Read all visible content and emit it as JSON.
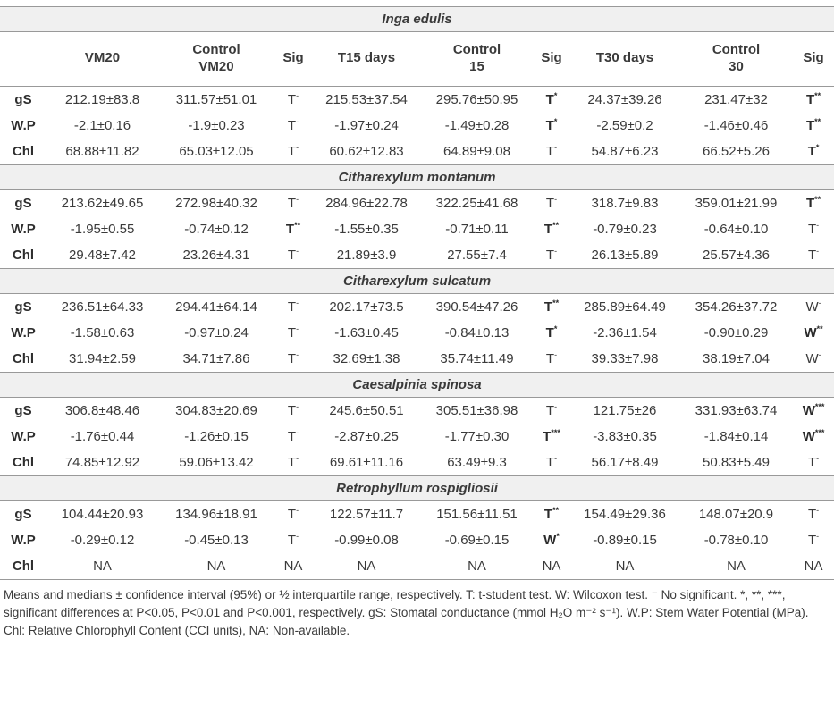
{
  "table": {
    "columns": [
      {
        "lines": []
      },
      {
        "lines": [
          "VM20"
        ]
      },
      {
        "lines": [
          "Control",
          "VM20"
        ]
      },
      {
        "lines": [
          "Sig"
        ]
      },
      {
        "lines": [
          "T15 days"
        ]
      },
      {
        "lines": [
          "Control",
          "15"
        ]
      },
      {
        "lines": [
          "Sig"
        ]
      },
      {
        "lines": [
          "T30 days"
        ]
      },
      {
        "lines": [
          "Control",
          "30"
        ]
      },
      {
        "lines": [
          "Sig"
        ]
      }
    ],
    "species": [
      {
        "name": "Inga edulis",
        "rows": [
          {
            "label": "gS",
            "values": [
              "212.19±83.8",
              "311.57±51.01",
              "215.53±37.54",
              "295.76±50.95",
              "24.37±39.26",
              "231.47±32"
            ],
            "sig": [
              {
                "t": "T",
                "s": "-"
              },
              {
                "t": "T",
                "s": "*",
                "b": true
              },
              {
                "t": "T",
                "s": "**",
                "b": true
              }
            ]
          },
          {
            "label": "W.P",
            "values": [
              "-2.1±0.16",
              "-1.9±0.23",
              "-1.97±0.24",
              "-1.49±0.28",
              "-2.59±0.2",
              "-1.46±0.46"
            ],
            "sig": [
              {
                "t": "T",
                "s": "-"
              },
              {
                "t": "T",
                "s": "*",
                "b": true
              },
              {
                "t": "T",
                "s": "**",
                "b": true
              }
            ]
          },
          {
            "label": "Chl",
            "values": [
              "68.88±11.82",
              "65.03±12.05",
              "60.62±12.83",
              "64.89±9.08",
              "54.87±6.23",
              "66.52±5.26"
            ],
            "sig": [
              {
                "t": "T",
                "s": "-"
              },
              {
                "t": "T",
                "s": "-"
              },
              {
                "t": "T",
                "s": "*",
                "b": true
              }
            ]
          }
        ]
      },
      {
        "name": "Citharexylum montanum",
        "rows": [
          {
            "label": "gS",
            "values": [
              "213.62±49.65",
              "272.98±40.32",
              "284.96±22.78",
              "322.25±41.68",
              "318.7±9.83",
              "359.01±21.99"
            ],
            "sig": [
              {
                "t": "T",
                "s": "-"
              },
              {
                "t": "T",
                "s": "-"
              },
              {
                "t": "T",
                "s": "**",
                "b": true
              }
            ]
          },
          {
            "label": "W.P",
            "values": [
              "-1.95±0.55",
              "-0.74±0.12",
              "-1.55±0.35",
              "-0.71±0.11",
              "-0.79±0.23",
              "-0.64±0.10"
            ],
            "sig": [
              {
                "t": "T",
                "s": "**",
                "b": true
              },
              {
                "t": "T",
                "s": "**",
                "b": true
              },
              {
                "t": "T",
                "s": "-"
              }
            ]
          },
          {
            "label": "Chl",
            "values": [
              "29.48±7.42",
              "23.26±4.31",
              "21.89±3.9",
              "27.55±7.4",
              "26.13±5.89",
              "25.57±4.36"
            ],
            "sig": [
              {
                "t": "T",
                "s": "-"
              },
              {
                "t": "T",
                "s": "-"
              },
              {
                "t": "T",
                "s": "-"
              }
            ]
          }
        ]
      },
      {
        "name": "Citharexylum sulcatum",
        "rows": [
          {
            "label": "gS",
            "values": [
              "236.51±64.33",
              "294.41±64.14",
              "202.17±73.5",
              "390.54±47.26",
              "285.89±64.49",
              "354.26±37.72"
            ],
            "sig": [
              {
                "t": "T",
                "s": "-"
              },
              {
                "t": "T",
                "s": "**",
                "b": true
              },
              {
                "t": "W",
                "s": "-"
              }
            ]
          },
          {
            "label": "W.P",
            "values": [
              "-1.58±0.63",
              "-0.97±0.24",
              "-1.63±0.45",
              "-0.84±0.13",
              "-2.36±1.54",
              "-0.90±0.29"
            ],
            "sig": [
              {
                "t": "T",
                "s": "-"
              },
              {
                "t": "T",
                "s": "*",
                "b": true
              },
              {
                "t": "W",
                "s": "**",
                "b": true
              }
            ]
          },
          {
            "label": "Chl",
            "values": [
              "31.94±2.59",
              "34.71±7.86",
              "32.69±1.38",
              "35.74±11.49",
              "39.33±7.98",
              "38.19±7.04"
            ],
            "sig": [
              {
                "t": "T",
                "s": "-"
              },
              {
                "t": "T",
                "s": "-"
              },
              {
                "t": "W",
                "s": "-"
              }
            ]
          }
        ]
      },
      {
        "name": "Caesalpinia spinosa",
        "rows": [
          {
            "label": "gS",
            "values": [
              "306.8±48.46",
              "304.83±20.69",
              "245.6±50.51",
              "305.51±36.98",
              "121.75±26",
              "331.93±63.74"
            ],
            "sig": [
              {
                "t": "T",
                "s": "-"
              },
              {
                "t": "T",
                "s": "-"
              },
              {
                "t": "W",
                "s": "***",
                "b": true
              }
            ]
          },
          {
            "label": "W.P",
            "values": [
              "-1.76±0.44",
              "-1.26±0.15",
              "-2.87±0.25",
              "-1.77±0.30",
              "-3.83±0.35",
              "-1.84±0.14"
            ],
            "sig": [
              {
                "t": "T",
                "s": "-"
              },
              {
                "t": "T",
                "s": "***",
                "b": true
              },
              {
                "t": "W",
                "s": "***",
                "b": true
              }
            ]
          },
          {
            "label": "Chl",
            "values": [
              "74.85±12.92",
              "59.06±13.42",
              "69.61±11.16",
              "63.49±9.3",
              "56.17±8.49",
              "50.83±5.49"
            ],
            "sig": [
              {
                "t": "T",
                "s": "-"
              },
              {
                "t": "T",
                "s": "-"
              },
              {
                "t": "T",
                "s": "-"
              }
            ]
          }
        ]
      },
      {
        "name": "Retrophyllum rospigliosii",
        "rows": [
          {
            "label": "gS",
            "values": [
              "104.44±20.93",
              "134.96±18.91",
              "122.57±11.7",
              "151.56±11.51",
              "154.49±29.36",
              "148.07±20.9"
            ],
            "sig": [
              {
                "t": "T",
                "s": "-"
              },
              {
                "t": "T",
                "s": "**",
                "b": true
              },
              {
                "t": "T",
                "s": "-"
              }
            ]
          },
          {
            "label": "W.P",
            "values": [
              "-0.29±0.12",
              "-0.45±0.13",
              "-0.99±0.08",
              "-0.69±0.15",
              "-0.89±0.15",
              "-0.78±0.10"
            ],
            "sig": [
              {
                "t": "T",
                "s": "-"
              },
              {
                "t": "W",
                "s": "*",
                "b": true
              },
              {
                "t": "T",
                "s": "-"
              }
            ]
          },
          {
            "label": "Chl",
            "values": [
              "NA",
              "NA",
              "NA",
              "NA",
              "NA",
              "NA"
            ],
            "sig": [
              {
                "t": "NA"
              },
              {
                "t": "NA"
              },
              {
                "t": "NA"
              }
            ]
          }
        ]
      }
    ]
  },
  "footnote": "Means and medians ± confidence interval (95%) or ½ interquartile range, respectively. T: t-student test. W: Wilcoxon test. ⁻ No significant. *, **, ***, significant differences at P<0.05, P<0.01 and P<0.001, respectively. gS: Stomatal conductance (mmol H₂O m⁻² s⁻¹). W.P: Stem Water Potential (MPa). Chl: Relative Chlorophyll Content (CCI units), NA: Non-available."
}
